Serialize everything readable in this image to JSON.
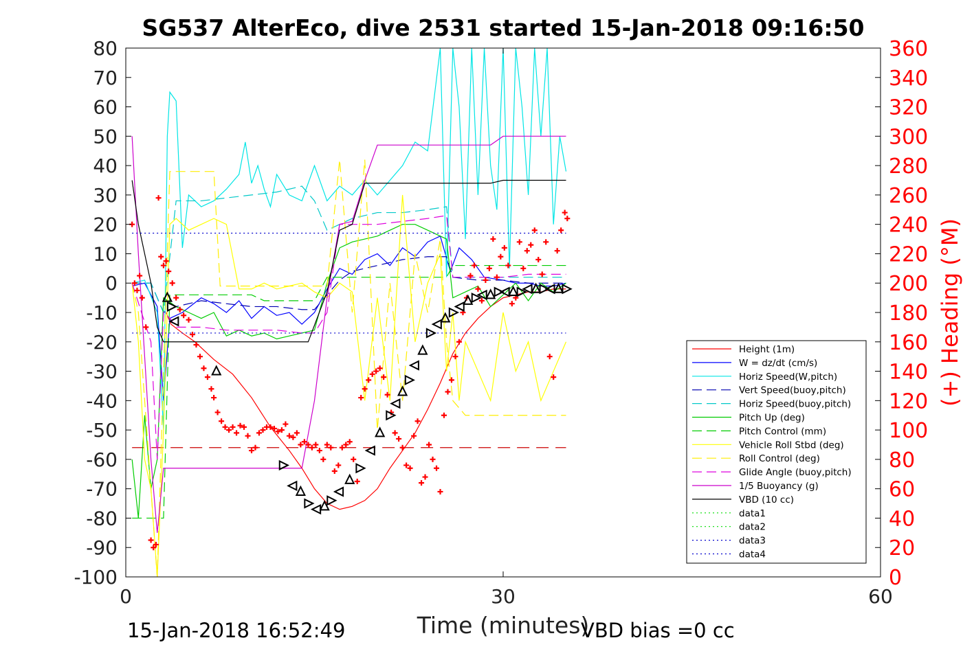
{
  "chart_data": {
    "type": "line",
    "title": "SG537 AlterEco, dive 2531 started 15-Jan-2018 09:16:50",
    "xlabel": "Time (minutes)",
    "ylabel": "",
    "y2label": "(+) Heading (°M)",
    "xlim": [
      0,
      60
    ],
    "ylim": [
      -100,
      80
    ],
    "y2lim": [
      0,
      360
    ],
    "xticks": [
      0,
      30,
      60
    ],
    "yticks": [
      -100,
      -90,
      -80,
      -70,
      -60,
      -50,
      -40,
      -30,
      -20,
      -10,
      0,
      10,
      20,
      30,
      40,
      50,
      60,
      70,
      80
    ],
    "y2ticks": [
      0,
      20,
      40,
      60,
      80,
      100,
      120,
      140,
      160,
      180,
      200,
      220,
      240,
      260,
      280,
      300,
      320,
      340,
      360
    ],
    "grid": false,
    "legend_position": "lower-right",
    "footer_left": "15-Jan-2018 16:52:49",
    "footer_right": "VBD bias =0 cc",
    "colors": {
      "axes": "#000000",
      "right_axis": "#ff0000",
      "heading": "#ff0000"
    },
    "series": [
      {
        "name": "Height (1m)",
        "color": "#ff0000",
        "style": "solid",
        "x": [
          3.2,
          3.6,
          4.5,
          5.5,
          7,
          8.5,
          10,
          11.5,
          13,
          14,
          15,
          16,
          17,
          18,
          19,
          20,
          21,
          22,
          23,
          24,
          25,
          26,
          27,
          28,
          29,
          30,
          31,
          32,
          33,
          34,
          35
        ],
        "y": [
          -10,
          -14,
          -17,
          -20,
          -26,
          -31,
          -39,
          -49,
          -57,
          -63,
          -70,
          -75,
          -77,
          -76,
          -74,
          -70,
          -63,
          -57,
          -51,
          -43,
          -34,
          -24,
          -17,
          -12,
          -8,
          -5,
          -4,
          -3,
          -3,
          -2,
          -2
        ]
      },
      {
        "name": "W = dz/dt (cm/s)",
        "color": "#0000ff",
        "style": "solid",
        "x": [
          0.5,
          1.5,
          2.5,
          3,
          3.5,
          4.5,
          6,
          7,
          8,
          9,
          10,
          11,
          12,
          13,
          14,
          15,
          16,
          17,
          18,
          19,
          20,
          21,
          22,
          23,
          24,
          25,
          25.8,
          26.5,
          27.5,
          28.5,
          30,
          31,
          32,
          33,
          34,
          35
        ],
        "y": [
          -1,
          0,
          -8,
          -40,
          -12,
          -10,
          -5,
          -7,
          -10,
          -6,
          -12,
          -8,
          -11,
          -10,
          -14,
          -10,
          -2,
          5,
          3,
          8,
          10,
          6,
          12,
          9,
          14,
          16,
          4,
          12,
          8,
          2,
          1,
          0,
          0,
          -1,
          -1,
          0
        ]
      },
      {
        "name": "Horiz Speed(W,pitch)",
        "color": "#00e5e5",
        "style": "solid",
        "x": [
          0.5,
          1.5,
          2.5,
          3,
          3.3,
          3.5,
          4,
          4.5,
          5,
          6,
          7,
          8,
          9,
          9.5,
          10,
          10.5,
          11,
          11.5,
          12,
          13,
          14,
          15,
          16,
          17,
          18,
          19,
          20,
          21,
          22,
          23,
          24,
          25,
          25.5,
          26,
          26.5,
          27,
          27.5,
          28,
          28.5,
          29,
          29.5,
          30,
          30.5,
          31,
          31.5,
          32,
          32.5,
          33,
          33.5,
          34,
          34.5,
          35
        ],
        "y": [
          0,
          1,
          -10,
          -50,
          50,
          65,
          62,
          12,
          30,
          26,
          28,
          32,
          37,
          48,
          34,
          40,
          32,
          26,
          37,
          30,
          28,
          40,
          28,
          33,
          30,
          35,
          30,
          35,
          40,
          48,
          45,
          80,
          2,
          80,
          60,
          15,
          80,
          30,
          80,
          40,
          25,
          80,
          5,
          80,
          60,
          30,
          80,
          50,
          80,
          20,
          50,
          38
        ]
      },
      {
        "name": "Vert Speed(buoy,pitch)",
        "color": "#0000b0",
        "style": "dash",
        "x": [
          0.5,
          2,
          3,
          4,
          6,
          8,
          10,
          12,
          14,
          15,
          16,
          17,
          18,
          20,
          22,
          24,
          25.5,
          26,
          28,
          30,
          32,
          34,
          35
        ],
        "y": [
          0,
          0,
          -10,
          -8,
          -6,
          -7,
          -8,
          -8,
          -9,
          -9,
          -4,
          1,
          4,
          6,
          8,
          9,
          9,
          2,
          1,
          1,
          0,
          0,
          0
        ]
      },
      {
        "name": "Horiz Speed(buoy,pitch)",
        "color": "#00c8c8",
        "style": "dash",
        "x": [
          0.5,
          2,
          3,
          4,
          6,
          8,
          10,
          12,
          14,
          15,
          16,
          17,
          18,
          20,
          22,
          24,
          25.5,
          26,
          28,
          30,
          32,
          34,
          35
        ],
        "y": [
          0,
          0,
          -10,
          28,
          28,
          29,
          30,
          31,
          33,
          28,
          18,
          20,
          22,
          24,
          24,
          25,
          26,
          2,
          2,
          2,
          2,
          2,
          2
        ]
      },
      {
        "name": "Pitch Up (deg)",
        "color": "#00cc00",
        "style": "solid",
        "x": [
          0.5,
          1,
          1.5,
          2,
          2.5,
          3,
          4,
          5,
          6,
          7,
          8,
          9,
          10,
          11,
          12,
          13,
          14,
          15,
          16,
          17,
          18,
          19,
          20,
          21,
          22,
          23,
          24,
          25,
          25.5,
          26,
          27,
          28,
          29,
          30,
          31,
          32,
          33,
          34,
          35
        ],
        "y": [
          -60,
          -80,
          -45,
          -70,
          -60,
          -5,
          -8,
          -10,
          -12,
          -10,
          -18,
          -16,
          -18,
          -17,
          -19,
          -18,
          -17,
          -16,
          0,
          12,
          14,
          15,
          16,
          18,
          20,
          20,
          18,
          16,
          15,
          -5,
          -3,
          -1,
          -8,
          -4,
          0,
          -6,
          0,
          -3,
          0
        ]
      },
      {
        "name": "Pitch Control (mm)",
        "color": "#00cc00",
        "style": "dash",
        "x": [
          0.5,
          3,
          3.5,
          10,
          11,
          15,
          16,
          18,
          25.5,
          26,
          35
        ],
        "y": [
          -80,
          -80,
          -4,
          -4,
          -6,
          -6,
          2,
          2,
          2,
          6,
          6
        ]
      },
      {
        "name": "Vehicle Roll Stbd (deg)",
        "color": "#ffff00",
        "style": "solid",
        "x": [
          0.5,
          1,
          1.5,
          2,
          2.5,
          3,
          3.5,
          4,
          5,
          6,
          7,
          8,
          9,
          10,
          11,
          12,
          13,
          14,
          15,
          16,
          17,
          18,
          19,
          20,
          21,
          22,
          23,
          24,
          25,
          25.5,
          26,
          26.5,
          27,
          28,
          29,
          30,
          31,
          32,
          33,
          34,
          35
        ],
        "y": [
          0,
          -20,
          -60,
          -70,
          -100,
          -50,
          20,
          22,
          18,
          20,
          22,
          20,
          -2,
          -2,
          0,
          -2,
          -1,
          0,
          -3,
          -5,
          0,
          -3,
          -40,
          -5,
          -40,
          30,
          -20,
          0,
          10,
          -30,
          -10,
          -40,
          -20,
          -30,
          -40,
          -10,
          -30,
          -20,
          -40,
          -30,
          -20
        ]
      },
      {
        "name": "Roll Control (deg)",
        "color": "#ffee00",
        "style": "dash",
        "x": [
          0.5,
          1,
          1.5,
          2.5,
          3,
          3.5,
          4,
          5,
          6,
          7,
          7.5,
          8,
          9,
          10,
          11,
          12,
          13,
          14,
          15,
          16,
          17,
          18,
          19,
          20,
          21,
          22,
          23,
          24,
          25,
          25.5,
          26,
          27,
          28,
          29,
          30,
          31,
          32,
          33,
          34,
          35
        ],
        "y": [
          0,
          -10,
          -40,
          -100,
          -30,
          38,
          38,
          38,
          38,
          38,
          -1,
          -1,
          -1,
          -1,
          -1,
          -1,
          -1,
          -1,
          -1,
          -1,
          42,
          -10,
          42,
          -50,
          0,
          -40,
          10,
          -10,
          15,
          -20,
          -40,
          -45,
          -45,
          -45,
          -45,
          -45,
          -45,
          -45,
          -45,
          -45
        ]
      },
      {
        "name": "Glide Angle (buoy,pitch)",
        "color": "#dd00dd",
        "style": "dash",
        "x": [
          0.5,
          2,
          2.5,
          3,
          3.5,
          4,
          6,
          8,
          10,
          12,
          14,
          15,
          16,
          17,
          18,
          20,
          22,
          24,
          25.5,
          26,
          28,
          30,
          32,
          34,
          35
        ],
        "y": [
          0,
          -20,
          -60,
          -10,
          -12,
          -15,
          -15,
          -16,
          -16,
          -16,
          -17,
          -17,
          -10,
          20,
          20,
          20,
          21,
          22,
          23,
          2,
          2,
          2,
          3,
          3,
          3
        ]
      },
      {
        "name": "1/5 Buoyancy (g)",
        "color": "#cc00cc",
        "style": "solid",
        "x": [
          0.5,
          1,
          2,
          2.5,
          3,
          3.5,
          5,
          8,
          12,
          14,
          15,
          16,
          17,
          18,
          19,
          20,
          21,
          25,
          29,
          30,
          31,
          35
        ],
        "y": [
          50,
          10,
          -60,
          -85,
          -63,
          -63,
          -63,
          -63,
          -63,
          -63,
          -40,
          -5,
          20,
          21,
          35,
          47,
          47,
          47,
          47,
          50,
          50,
          50
        ]
      },
      {
        "name": "VBD (10 cc)",
        "color": "#000000",
        "style": "solid",
        "x": [
          0.5,
          1,
          2,
          2.5,
          3,
          3.5,
          5,
          8,
          12,
          13,
          14,
          14.5,
          16,
          17,
          18,
          19,
          20,
          21,
          23,
          25,
          27,
          29,
          30,
          32,
          35
        ],
        "y": [
          35,
          20,
          0,
          -15,
          -20,
          -20,
          -20,
          -20,
          -20,
          -20,
          -20,
          -20,
          -3,
          18,
          20,
          34,
          34,
          34,
          34,
          34,
          34,
          34,
          35,
          35,
          35
        ]
      },
      {
        "name": "data1",
        "color": "#00dd00",
        "style": "dot",
        "x": [],
        "y": []
      },
      {
        "name": "data2",
        "color": "#00dd00",
        "style": "dot",
        "x": [],
        "y": []
      },
      {
        "name": "data3",
        "color": "#0000cc",
        "style": "dot",
        "x": [
          0.5,
          35
        ],
        "y": [
          17,
          17
        ]
      },
      {
        "name": "data4",
        "color": "#0000cc",
        "style": "dot",
        "x": [
          0.5,
          35
        ],
        "y": [
          -17,
          -17
        ]
      }
    ],
    "reference_line": {
      "color": "#cc0000",
      "style": "longdash",
      "x": [
        0.5,
        35
      ],
      "y": [
        -56,
        -56
      ]
    },
    "heading_points": {
      "color": "#ff0000",
      "axis": "right",
      "marker": "plus",
      "x": [
        0.5,
        0.7,
        0.9,
        1.1,
        1.3,
        1.6,
        2,
        2.2,
        2.4,
        2.6,
        2.8,
        3,
        3.2,
        3.4,
        3.7,
        4,
        4.3,
        4.6,
        5,
        5.3,
        5.6,
        5.9,
        6.2,
        6.5,
        6.8,
        7,
        7.3,
        7.6,
        7.9,
        8.2,
        8.5,
        8.8,
        9.1,
        9.4,
        9.7,
        10,
        10.3,
        10.6,
        10.9,
        11.2,
        11.5,
        11.8,
        12.1,
        12.4,
        12.7,
        13,
        13.3,
        13.6,
        13.9,
        14.2,
        14.5,
        14.8,
        15.1,
        15.4,
        15.7,
        16,
        16.3,
        16.6,
        16.9,
        17.2,
        17.5,
        17.8,
        18.1,
        18.4,
        18.7,
        19,
        19.3,
        19.6,
        19.9,
        20.2,
        20.5,
        20.8,
        21.1,
        21.4,
        21.7,
        22,
        22.3,
        22.6,
        22.9,
        23.2,
        23.5,
        23.8,
        24.1,
        24.4,
        24.7,
        25,
        25.3,
        25.6,
        25.9,
        26.2,
        26.5,
        26.8,
        27.1,
        27.4,
        27.7,
        28,
        28.3,
        28.6,
        28.9,
        29.2,
        29.5,
        29.8,
        30.1,
        30.4,
        30.7,
        31,
        31.3,
        31.6,
        31.9,
        32.2,
        32.5,
        32.8,
        33.1,
        33.4,
        33.7,
        34,
        34.3,
        34.6,
        34.9,
        35.1
      ],
      "y": [
        240,
        200,
        195,
        205,
        190,
        170,
        25,
        20,
        22,
        258,
        218,
        212,
        215,
        208,
        200,
        190,
        182,
        178,
        175,
        165,
        158,
        150,
        142,
        136,
        128,
        122,
        112,
        106,
        102,
        100,
        102,
        98,
        103,
        102,
        96,
        86,
        88,
        98,
        100,
        102,
        102,
        101,
        99,
        100,
        104,
        96,
        95,
        98,
        90,
        92,
        90,
        88,
        90,
        86,
        80,
        90,
        88,
        72,
        76,
        88,
        90,
        92,
        80,
        65,
        122,
        128,
        134,
        138,
        140,
        142,
        136,
        124,
        112,
        98,
        94,
        88,
        76,
        74,
        96,
        106,
        64,
        68,
        90,
        80,
        74,
        58,
        110,
        126,
        134,
        150,
        160,
        180,
        190,
        205,
        212,
        196,
        188,
        202,
        210,
        230,
        204,
        218,
        224,
        212,
        186,
        190,
        228,
        210,
        222,
        226,
        236,
        216,
        206,
        228,
        150,
        136,
        222,
        236,
        248,
        244
      ]
    },
    "markers_triangle": {
      "color": "#000000",
      "x": [
        3.3,
        3.6,
        3.9,
        7.2,
        12.5,
        13.3,
        13.9,
        14.5,
        15.2,
        15.8,
        16.3,
        17,
        17.8,
        18.6,
        19.5,
        20.2,
        21,
        21.5,
        22,
        22.5,
        23,
        23.6,
        24.2,
        24.8,
        25.4,
        26,
        26.6,
        27.2,
        27.8,
        28.4,
        29,
        29.6,
        30.2,
        30.8,
        31.4,
        32,
        32.6,
        33.2,
        33.8,
        34.4,
        35
      ],
      "y": [
        -5,
        -8,
        -13,
        -30,
        -62,
        -69,
        -71,
        -75,
        -77,
        -76,
        -74,
        -71,
        -67,
        -63,
        -57,
        -51,
        -45,
        -41,
        -37,
        -33,
        -28,
        -23,
        -17,
        -14,
        -12,
        -10,
        -8,
        -6,
        -5,
        -4,
        -4,
        -3,
        -3,
        -3,
        -3,
        -2,
        -2,
        -2,
        -2,
        -2,
        -2
      ]
    }
  }
}
